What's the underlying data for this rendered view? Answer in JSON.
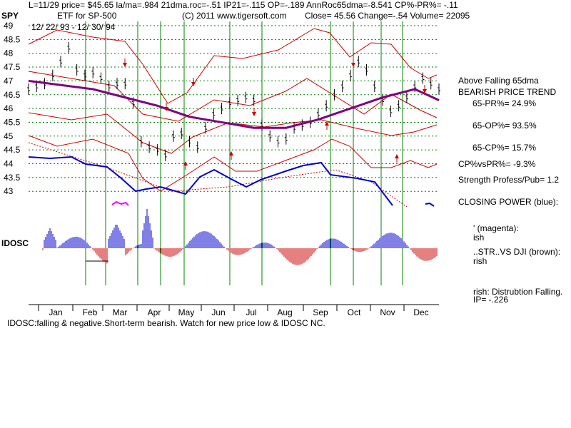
{
  "header": {
    "line1": "L=11/29  price= $45.65  la/ma=.984 21dma.roc=-.51  IP21=-.115 OP=-.189 AnnRoc65dma=-8.541 CP%-PR%= -.11",
    "ticker": "SPY",
    "etf": "ETF for SP-500",
    "copyright": "(C) 2011  www.tigersoft.com",
    "close": "Close=  45.56  Change=-.54 Volume= 22095",
    "dates": "12/ 22/ 93 - 12/ 30/ 94"
  },
  "side_panel": {
    "above": "Above Falling 65dma",
    "bearish": "BEARISH PRICE TREND",
    "pr": "65-PR%= 24.9%",
    "op": "65-OP%= 93.5%",
    "cp": "65-CP%= 15.7%",
    "cpvspr": "CP%vsPR%= -9.3%",
    "strength": "Strength Profess/Pub= 1.2",
    "closing_power": "CLOSING POWER (blue):",
    "magenta1": "' (magenta):",
    "magenta2": "ish",
    "brown1": "..STR..VS DJI (brown):",
    "brown2": "rish",
    "dist1": "rish:  Distrubtion Falling.",
    "dist2": "IP= -.226"
  },
  "footer": {
    "idosc_note": "IDOSC:falling & negative.Short-term bearish. Watch for new price low & IDOSC NC."
  },
  "colors": {
    "price_bars": "#000000",
    "bands": "#cc0000",
    "ma65": "#800080",
    "closing_power": "#0000cc",
    "vertical_signals": "#008000",
    "grid": "#008000",
    "idosc_pos": "#0000cc",
    "idosc_neg": "#cc0000",
    "arrows": "#cc0000"
  },
  "chart_data": {
    "type": "line",
    "title": "ETF for SP-500",
    "y_ticks": [
      "49",
      "48.5",
      "48",
      "47.5",
      "47",
      "46.5",
      "46",
      "45.5",
      "45",
      "44.5",
      "44",
      "43.5",
      "43"
    ],
    "ylim": [
      42.5,
      49
    ],
    "x_months": [
      "Jan",
      "Feb",
      "Mar",
      "Apr",
      "May",
      "Jun",
      "Jul",
      "Aug",
      "Sep",
      "Oct",
      "Nov",
      "Dec"
    ],
    "idosc_label": "IDOSC",
    "series": [
      {
        "name": "price",
        "x": [
          0,
          5,
          10,
          15,
          20,
          25,
          30,
          35,
          40,
          45,
          50,
          55,
          60,
          65,
          70,
          75,
          80,
          85,
          90,
          95,
          100,
          105,
          110,
          115,
          120,
          125,
          130,
          135,
          140,
          145,
          150,
          155,
          160,
          165,
          170,
          175,
          180,
          185,
          190,
          195,
          200,
          205,
          210,
          215,
          220,
          225,
          230,
          235,
          240,
          245,
          250,
          255
        ],
        "values": [
          46.7,
          46.8,
          46.9,
          47.2,
          47.7,
          48.2,
          47.4,
          47.2,
          47.3,
          47.1,
          46.8,
          46.9,
          46.9,
          46.2,
          44.8,
          44.6,
          44.5,
          44.3,
          45.0,
          45.1,
          44.8,
          44.6,
          45.3,
          45.8,
          46.0,
          46.2,
          46.3,
          46.4,
          46.3,
          45.4,
          45.0,
          44.8,
          44.9,
          45.3,
          45.4,
          45.5,
          45.8,
          46.1,
          46.5,
          46.8,
          47.2,
          47.7,
          47.4,
          46.8,
          46.3,
          45.9,
          46.1,
          46.4,
          46.8,
          47.1,
          46.9,
          46.7
        ]
      },
      {
        "name": "65dma",
        "x": [
          0,
          40,
          60,
          80,
          100,
          120,
          140,
          160,
          180,
          200,
          220,
          240,
          255
        ],
        "values": [
          47.0,
          46.7,
          46.4,
          46.1,
          45.7,
          45.5,
          45.3,
          45.3,
          45.6,
          46.0,
          46.4,
          46.7,
          46.3
        ]
      }
    ]
  }
}
